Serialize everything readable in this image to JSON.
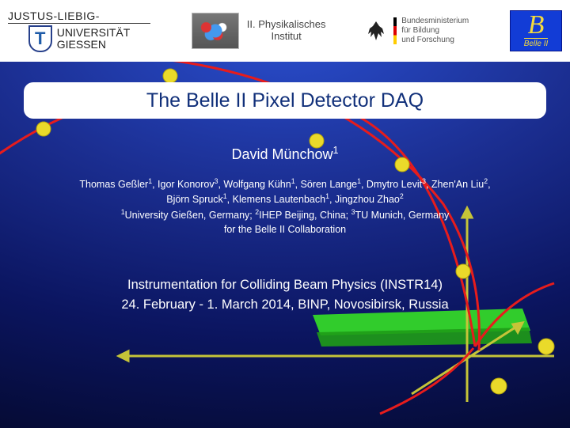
{
  "header": {
    "jlu": {
      "top": "JUSTUS-LIEBIG-",
      "uni": "UNIVERSITÄT",
      "city": "GIESSEN",
      "letter": "T"
    },
    "inst2": {
      "line1": "II. Physikalisches",
      "line2": "Institut"
    },
    "bmbf": {
      "line1": "Bundesministerium",
      "line2": "für Bildung",
      "line3": "und Forschung"
    },
    "belle2": {
      "big": "B",
      "label": "Belle II"
    }
  },
  "title": "The Belle II Pixel Detector DAQ",
  "presenter": {
    "name": "David Münchow",
    "aff": "1"
  },
  "authors_line1_html": "Thomas Geßler<sup>1</sup>, Igor Konorov<sup>3</sup>, Wolfgang Kühn<sup>1</sup>, Sören Lange<sup>1</sup>, Dmytro Levit<sup>3</sup>, Zhen'An Liu<sup>2</sup>,",
  "authors_line2_html": "Björn Spruck<sup>1</sup>, Klemens Lautenbach<sup>1</sup>, Jingzhou Zhao<sup>2</sup>",
  "affiliations_html": "<sup>1</sup>University Gießen, Germany; <sup>2</sup>IHEP Beijing, China; <sup>3</sup>TU Munich, Germany",
  "collab": "for the Belle II Collaboration",
  "conference": "Instrumentation for Colliding Beam Physics (INSTR14)",
  "dateplace": "24. February - 1. March 2014, BINP, Novosibirsk, Russia",
  "style": {
    "title_color": "#11307a",
    "title_bg": "#ffffff",
    "gradient_stops": [
      "#2a4fd0",
      "#1b2e91",
      "#0b1560",
      "#030726"
    ],
    "belle2_bg": "#123cd6",
    "belle2_fg": "#f3da3e",
    "axis_color": "#c5c438",
    "track_color": "#e71c1c",
    "marker_color": "#eada2a",
    "plane_color": "#34d629"
  }
}
